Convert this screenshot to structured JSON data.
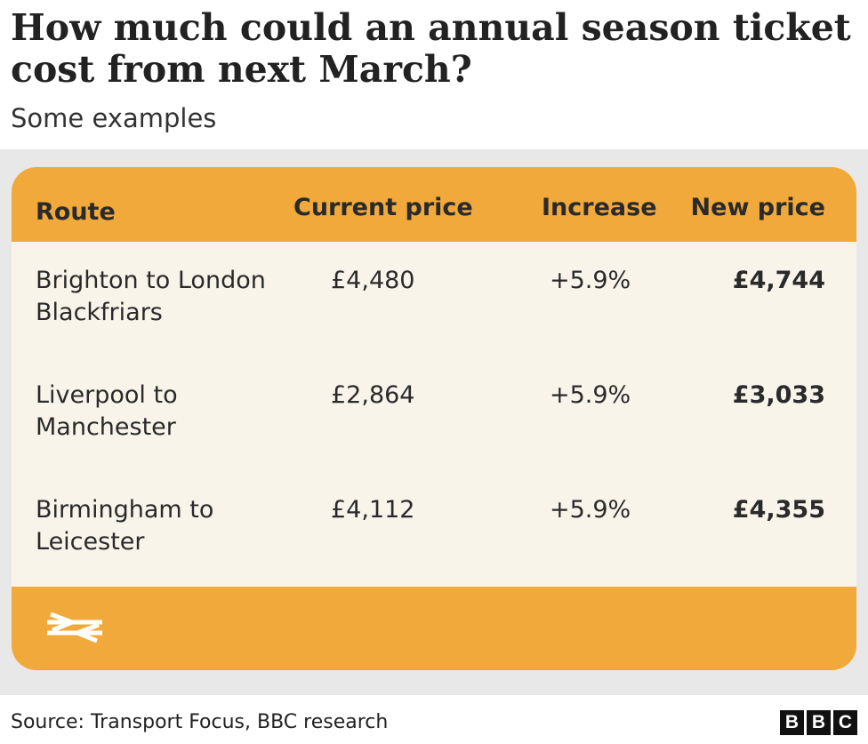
{
  "title": "How much could an annual season ticket cost from next March?",
  "subtitle": "Some examples",
  "chart_data": {
    "type": "table",
    "columns": [
      "Route",
      "Current price",
      "Increase",
      "New price"
    ],
    "rows": [
      {
        "route": "Brighton to London Blackfriars",
        "current": "£4,480",
        "increase": "+5.9%",
        "new": "£4,744"
      },
      {
        "route": "Liverpool to Manchester",
        "current": "£2,864",
        "increase": "+5.9%",
        "new": "£3,033"
      },
      {
        "route": "Birmingham to Leicester",
        "current": "£4,112",
        "increase": "+5.9%",
        "new": "£4,355"
      }
    ]
  },
  "footer_icon": "national-rail-icon",
  "source": "Source: Transport Focus, BBC research",
  "logo": [
    "B",
    "B",
    "C"
  ],
  "colors": {
    "header_bg": "#f0a93a",
    "body_bg": "#f8f4ea",
    "panel_bg": "#e8e8e8"
  }
}
